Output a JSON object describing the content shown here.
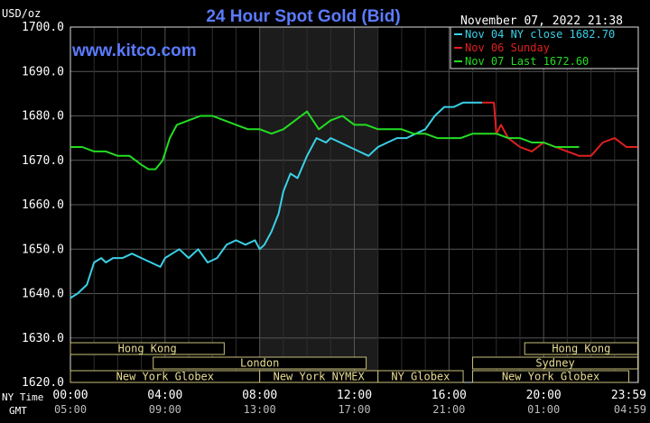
{
  "chart_data": {
    "type": "line",
    "title": "24 Hour Spot Gold (Bid)",
    "watermark": "www.kitco.com",
    "timestamp": "November 07, 2022 21:38",
    "ylabel": "USD/oz",
    "ylim": [
      1620,
      1700
    ],
    "y_ticks": [
      "1700.0",
      "1690.0",
      "1680.0",
      "1670.0",
      "1660.0",
      "1650.0",
      "1640.0",
      "1630.0",
      "1620.0"
    ],
    "y_tick_values": [
      1700,
      1690,
      1680,
      1670,
      1660,
      1650,
      1640,
      1630,
      1620
    ],
    "xlim": [
      0,
      24
    ],
    "x_ticks_ny": [
      "00:00",
      "04:00",
      "08:00",
      "12:00",
      "16:00",
      "20:00",
      "23:59"
    ],
    "x_ticks_ny_values": [
      0,
      4,
      8,
      12,
      16,
      20,
      23.98
    ],
    "x_ticks_gmt": [
      "05:00",
      "09:00",
      "13:00",
      "17:00",
      "21:00",
      "01:00",
      "04:59"
    ],
    "x_axis_label_ny": "NY Time",
    "x_axis_label_gmt": "GMT",
    "shaded_range": [
      8,
      13
    ],
    "grid": true,
    "legend_position": "top-right",
    "series": [
      {
        "name": "Nov 04 NY close 1682.70",
        "color": "#3ad0e6",
        "x": [
          0,
          0.3,
          0.7,
          1.0,
          1.3,
          1.5,
          1.8,
          2.2,
          2.6,
          3.0,
          3.4,
          3.8,
          4.0,
          4.3,
          4.6,
          5.0,
          5.4,
          5.8,
          6.2,
          6.6,
          7.0,
          7.4,
          7.8,
          8.0,
          8.2,
          8.5,
          8.8,
          9.0,
          9.3,
          9.6,
          10.0,
          10.4,
          10.8,
          11.0,
          11.4,
          11.8,
          12.2,
          12.6,
          13.0,
          13.4,
          13.8,
          14.2,
          14.6,
          15.0,
          15.4,
          15.8,
          16.2,
          16.6,
          17.0,
          17.4
        ],
        "values": [
          1639,
          1640,
          1642,
          1647,
          1648,
          1647,
          1648,
          1648,
          1649,
          1648,
          1647,
          1646,
          1648,
          1649,
          1650,
          1648,
          1650,
          1647,
          1648,
          1651,
          1652,
          1651,
          1652,
          1650,
          1651,
          1654,
          1658,
          1663,
          1667,
          1666,
          1671,
          1675,
          1674,
          1675,
          1674,
          1673,
          1672,
          1671,
          1673,
          1674,
          1675,
          1675,
          1676,
          1677,
          1680,
          1682,
          1682,
          1683,
          1683,
          1683
        ]
      },
      {
        "name": "Nov 06 Sunday",
        "color": "#e02020",
        "x": [
          17.4,
          17.9,
          18.0,
          18.2,
          18.5,
          19.0,
          19.5,
          20.0,
          20.5,
          21.0,
          21.5,
          22.0,
          22.5,
          23.0,
          23.5,
          23.98
        ],
        "values": [
          1683,
          1683,
          1676,
          1678,
          1675,
          1673,
          1672,
          1674,
          1673,
          1672,
          1671,
          1671,
          1674,
          1675,
          1673,
          1673
        ]
      },
      {
        "name": "Nov 07 Last 1672.60",
        "color": "#22dd22",
        "x": [
          0,
          0.5,
          1.0,
          1.5,
          2.0,
          2.5,
          3.0,
          3.3,
          3.6,
          3.9,
          4.2,
          4.5,
          5.0,
          5.5,
          6.0,
          6.5,
          7.0,
          7.5,
          8.0,
          8.5,
          9.0,
          9.5,
          10.0,
          10.5,
          11.0,
          11.5,
          12.0,
          12.5,
          13.0,
          13.5,
          14.0,
          14.5,
          15.0,
          15.5,
          16.0,
          16.5,
          17.0,
          17.5,
          18.0,
          18.5,
          19.0,
          19.5,
          20.0,
          20.5,
          21.0,
          21.5
        ],
        "values": [
          1673,
          1673,
          1672,
          1672,
          1671,
          1671,
          1669,
          1668,
          1668,
          1670,
          1675,
          1678,
          1679,
          1680,
          1680,
          1679,
          1678,
          1677,
          1677,
          1676,
          1677,
          1679,
          1681,
          1677,
          1679,
          1680,
          1678,
          1678,
          1677,
          1677,
          1677,
          1676,
          1676,
          1675,
          1675,
          1675,
          1676,
          1676,
          1676,
          1675,
          1675,
          1674,
          1674,
          1673,
          1673,
          1673
        ]
      }
    ],
    "sessions": [
      {
        "label": "Hong Kong",
        "start": 0,
        "end": 6.5,
        "row": 0
      },
      {
        "label": "London",
        "start": 3.5,
        "end": 12.5,
        "row": 1
      },
      {
        "label": "New York Globex",
        "start": 0,
        "end": 8.0,
        "row": 2
      },
      {
        "label": "New York NYMEX",
        "start": 8.0,
        "end": 13.0,
        "row": 2
      },
      {
        "label": "NY Globex",
        "start": 13.0,
        "end": 16.6,
        "row": 2
      },
      {
        "label": "Hong Kong",
        "start": 19.2,
        "end": 23.98,
        "row": 0
      },
      {
        "label": "Sydney",
        "start": 17.0,
        "end": 23.98,
        "row": 1
      },
      {
        "label": "New York Globex",
        "start": 17.0,
        "end": 23.6,
        "row": 2
      }
    ]
  }
}
